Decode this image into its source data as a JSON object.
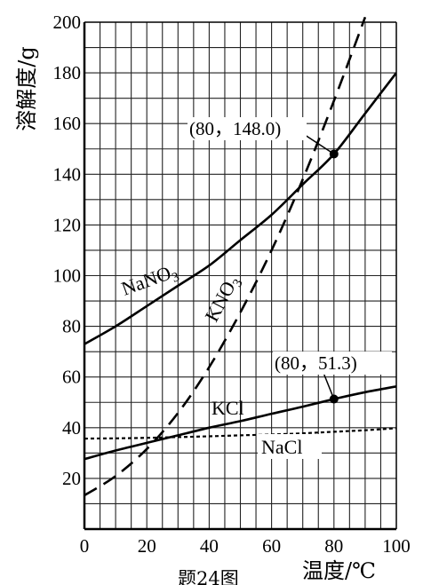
{
  "chart_data": {
    "type": "line",
    "ylabel": "溶解度/g",
    "xlabel": "温度/℃",
    "caption": "题24图",
    "xlim": [
      0,
      100
    ],
    "ylim": [
      0,
      200
    ],
    "xticks": [
      0,
      20,
      40,
      60,
      80,
      100
    ],
    "yticks": [
      20,
      40,
      60,
      80,
      100,
      120,
      140,
      160,
      180,
      200
    ],
    "grid": true,
    "series": [
      {
        "name": "NaNO3",
        "name_main": "NaNO",
        "name_sub": "3",
        "style": "solid",
        "x": [
          0,
          10,
          20,
          30,
          40,
          50,
          60,
          70,
          80,
          90,
          100
        ],
        "y": [
          73,
          80,
          88,
          96,
          104,
          114,
          124,
          136,
          148,
          164,
          180
        ]
      },
      {
        "name": "KNO3",
        "name_main": "KNO",
        "name_sub": "3",
        "style": "dashed",
        "x": [
          0,
          10,
          20,
          30,
          40,
          50,
          60,
          70,
          80,
          90
        ],
        "y": [
          13.3,
          20.9,
          31.6,
          45.8,
          63.9,
          85.5,
          110,
          138,
          169,
          202
        ]
      },
      {
        "name": "KCl",
        "style": "solid",
        "x": [
          0,
          10,
          20,
          30,
          40,
          50,
          60,
          70,
          80,
          90,
          100
        ],
        "y": [
          27.6,
          31.0,
          34.0,
          37.0,
          40.0,
          42.6,
          45.5,
          48.3,
          51.3,
          54.0,
          56.3
        ]
      },
      {
        "name": "NaCl",
        "style": "dotted",
        "x": [
          0,
          10,
          20,
          30,
          40,
          50,
          60,
          70,
          80,
          90,
          100
        ],
        "y": [
          35.7,
          35.8,
          36.0,
          36.3,
          36.6,
          37.0,
          37.3,
          37.8,
          38.4,
          39.0,
          39.8
        ]
      }
    ],
    "annotations": [
      {
        "x": 80,
        "y": 148.0,
        "text": "(80，148.0)"
      },
      {
        "x": 80,
        "y": 51.3,
        "text": "(80，51.3)"
      }
    ]
  }
}
